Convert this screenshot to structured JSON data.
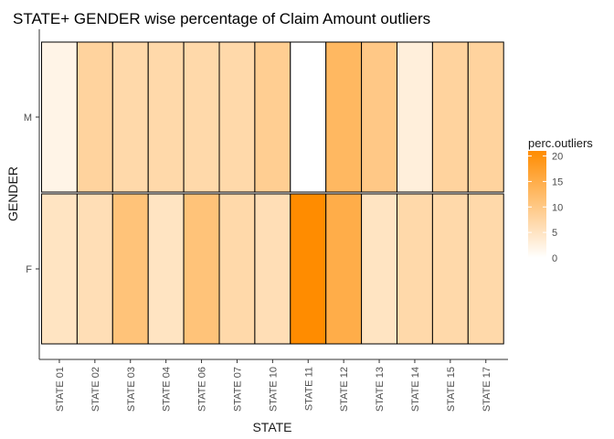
{
  "chart_data": {
    "type": "heatmap",
    "title": "STATE+ GENDER wise percentage of Claim Amount outliers",
    "xlabel": "STATE",
    "ylabel": "GENDER",
    "x_categories": [
      "STATE 01",
      "STATE 02",
      "STATE 03",
      "STATE 04",
      "STATE 06",
      "STATE 07",
      "STATE 10",
      "STATE 11",
      "STATE 12",
      "STATE 13",
      "STATE 14",
      "STATE 15",
      "STATE 17"
    ],
    "y_categories": [
      "F",
      "M"
    ],
    "values": {
      "M": [
        2,
        8,
        7,
        7,
        7,
        7,
        9,
        null,
        13,
        10,
        3,
        8,
        8
      ],
      "F": [
        5,
        6,
        11,
        5,
        11,
        7,
        6,
        21,
        15,
        5,
        7,
        7,
        7
      ]
    },
    "legend": {
      "title": "perc.outliers",
      "ticks": [
        0,
        5,
        10,
        15,
        20
      ],
      "range": [
        0,
        21
      ],
      "low_color": "#ffffff",
      "high_color": "#ff8c00",
      "position": "right"
    },
    "na_color": "#ffffff",
    "grid": false,
    "tile_border_color": "#000000"
  }
}
